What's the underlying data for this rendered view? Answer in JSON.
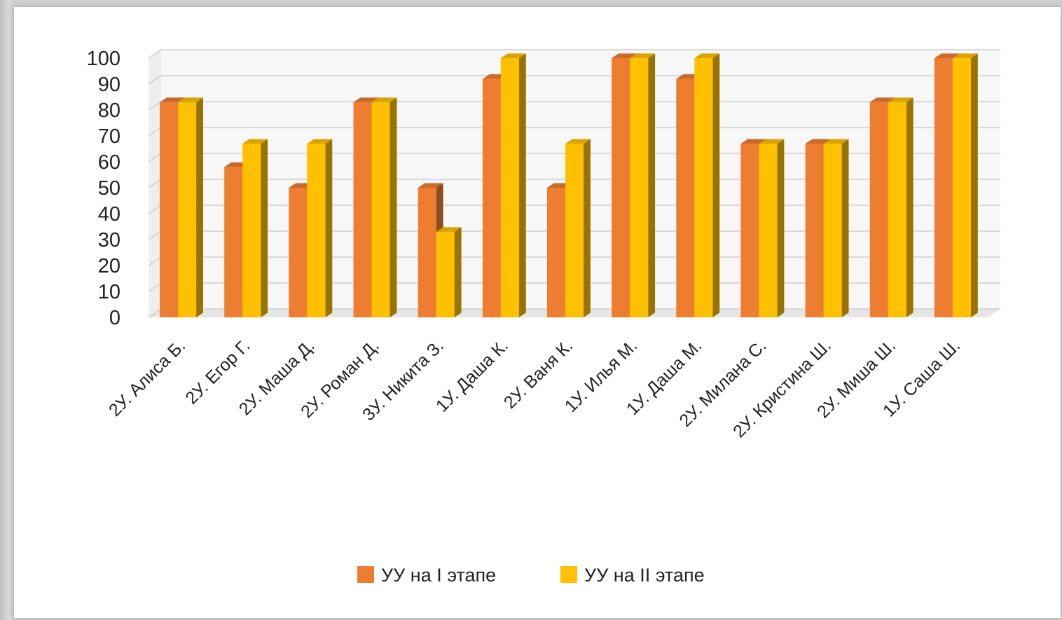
{
  "chart_data": {
    "type": "bar",
    "categories": [
      "2У. Алиса Б.",
      "2У. Егор Г.",
      "2У. Маша Д.",
      "2У. Роман Д.",
      "3У. Никита З.",
      "1У. Даша К.",
      "2У.  Ваня К.",
      "1У. Илья М.",
      "1У. Даша М.",
      "2У. Милана С.",
      "2У. Кристина Ш.",
      "2У. Миша Ш.",
      "1У. Саша Ш."
    ],
    "series": [
      {
        "name": "УУ на I этапе",
        "color": "#ED7D31",
        "values": [
          83,
          58,
          50,
          83,
          50,
          92,
          50,
          100,
          92,
          67,
          67,
          83,
          100
        ]
      },
      {
        "name": "УУ на II этапе",
        "color": "#FFC000",
        "values": [
          83,
          67,
          67,
          83,
          33,
          100,
          67,
          100,
          100,
          67,
          67,
          83,
          100
        ]
      }
    ],
    "ylim": [
      0,
      100
    ],
    "yticks": [
      "0",
      "10",
      "20",
      "30",
      "40",
      "50",
      "60",
      "70",
      "80",
      "90",
      "100"
    ],
    "grid": true,
    "legend": "bottom",
    "style": "3d-clustered-column"
  }
}
